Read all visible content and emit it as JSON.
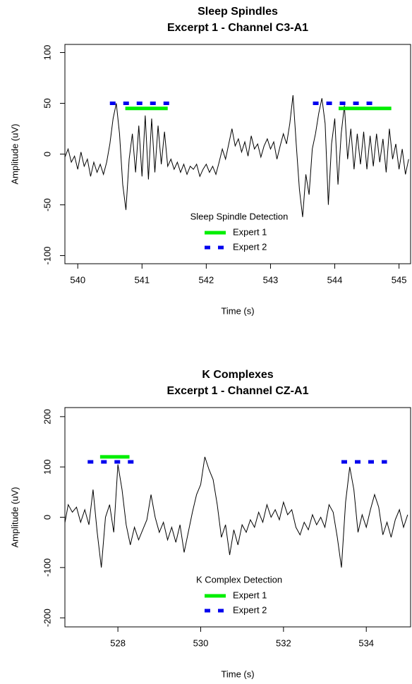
{
  "chart_data": [
    {
      "type": "line",
      "title": "Sleep Spindles",
      "subtitle": "Excerpt 1 - Channel C3-A1",
      "xlabel": "Time (s)",
      "ylabel": "Amplitude (uV)",
      "xlim": [
        539.8,
        545.18
      ],
      "ylim": [
        -108,
        108
      ],
      "xticks": [
        540,
        541,
        542,
        543,
        544,
        545
      ],
      "yticks": [
        -100,
        -50,
        0,
        50,
        100
      ],
      "grid": false,
      "legend": "bottom",
      "legend_title": "Sleep Spindle Detection",
      "color": "#000000",
      "x": [
        539.8,
        539.85,
        539.9,
        539.95,
        540.0,
        540.05,
        540.1,
        540.15,
        540.2,
        540.25,
        540.3,
        540.35,
        540.4,
        540.45,
        540.5,
        540.55,
        540.6,
        540.65,
        540.7,
        540.75,
        540.8,
        540.85,
        540.9,
        540.95,
        541.0,
        541.05,
        541.1,
        541.15,
        541.2,
        541.25,
        541.3,
        541.35,
        541.4,
        541.45,
        541.5,
        541.55,
        541.6,
        541.65,
        541.7,
        541.75,
        541.8,
        541.85,
        541.9,
        541.95,
        542.0,
        542.05,
        542.1,
        542.15,
        542.2,
        542.25,
        542.3,
        542.35,
        542.4,
        542.45,
        542.5,
        542.55,
        542.6,
        542.65,
        542.7,
        542.75,
        542.8,
        542.85,
        542.9,
        542.95,
        543.0,
        543.05,
        543.1,
        543.15,
        543.2,
        543.25,
        543.3,
        543.35,
        543.4,
        543.45,
        543.5,
        543.55,
        543.6,
        543.65,
        543.7,
        543.75,
        543.8,
        543.85,
        543.9,
        543.95,
        544.0,
        544.05,
        544.1,
        544.15,
        544.2,
        544.25,
        544.3,
        544.35,
        544.4,
        544.45,
        544.5,
        544.55,
        544.6,
        544.65,
        544.7,
        544.75,
        544.8,
        544.85,
        544.9,
        544.95,
        545.0,
        545.05,
        545.1,
        545.15
      ],
      "values": [
        -3,
        5,
        -8,
        -2,
        -15,
        2,
        -12,
        -5,
        -22,
        -8,
        -18,
        -10,
        -20,
        -8,
        10,
        35,
        50,
        20,
        -30,
        -55,
        -5,
        20,
        -18,
        28,
        -22,
        38,
        -25,
        35,
        -18,
        28,
        -10,
        22,
        -12,
        -5,
        -15,
        -8,
        -18,
        -10,
        -20,
        -12,
        -15,
        -10,
        -22,
        -15,
        -10,
        -18,
        -12,
        -20,
        -8,
        5,
        -5,
        10,
        25,
        8,
        15,
        2,
        12,
        -2,
        18,
        5,
        10,
        -3,
        8,
        15,
        5,
        12,
        -5,
        8,
        20,
        10,
        30,
        58,
        10,
        -35,
        -62,
        -20,
        -40,
        5,
        20,
        40,
        55,
        30,
        -50,
        10,
        35,
        -30,
        20,
        48,
        -5,
        25,
        -15,
        20,
        -10,
        22,
        -15,
        18,
        -12,
        20,
        -8,
        15,
        -18,
        25,
        -5,
        10,
        -15,
        5,
        -20,
        -5
      ],
      "series": [
        {
          "name": "Expert 1",
          "color": "#00ee00",
          "dashed": false,
          "level": 45,
          "intervals": [
            [
              540.74,
              541.4
            ],
            [
              544.06,
              544.88
            ]
          ]
        },
        {
          "name": "Expert 2",
          "color": "#0000ee",
          "dashed": true,
          "level": 50,
          "intervals": [
            [
              540.5,
              541.49
            ],
            [
              543.66,
              544.66
            ]
          ]
        }
      ]
    },
    {
      "type": "line",
      "title": "K Complexes",
      "subtitle": "Excerpt 1 - Channel CZ-A1",
      "xlabel": "Time (s)",
      "ylabel": "Amplitude (uV)",
      "xlim": [
        526.72,
        535.07
      ],
      "ylim": [
        -218,
        218
      ],
      "xticks": [
        528,
        530,
        532,
        534
      ],
      "yticks": [
        -200,
        -100,
        0,
        100,
        200
      ],
      "grid": false,
      "legend": "bottom",
      "legend_title": "K Complex Detection",
      "color": "#000000",
      "x": [
        526.7,
        526.8,
        526.9,
        527.0,
        527.1,
        527.2,
        527.3,
        527.4,
        527.5,
        527.6,
        527.7,
        527.8,
        527.9,
        528.0,
        528.1,
        528.2,
        528.3,
        528.4,
        528.5,
        528.6,
        528.7,
        528.8,
        528.9,
        529.0,
        529.1,
        529.2,
        529.3,
        529.4,
        529.5,
        529.6,
        529.7,
        529.8,
        529.9,
        530.0,
        530.1,
        530.2,
        530.3,
        530.4,
        530.5,
        530.6,
        530.7,
        530.8,
        530.9,
        531.0,
        531.1,
        531.2,
        531.3,
        531.4,
        531.5,
        531.6,
        531.7,
        531.8,
        531.9,
        532.0,
        532.1,
        532.2,
        532.3,
        532.4,
        532.5,
        532.6,
        532.7,
        532.8,
        532.9,
        533.0,
        533.1,
        533.2,
        533.3,
        533.4,
        533.5,
        533.6,
        533.7,
        533.8,
        533.9,
        534.0,
        534.1,
        534.2,
        534.3,
        534.4,
        534.5,
        534.6,
        534.7,
        534.8,
        534.9,
        535.0
      ],
      "values": [
        -20,
        25,
        10,
        20,
        -10,
        15,
        -15,
        55,
        -30,
        -100,
        0,
        25,
        -30,
        105,
        55,
        -15,
        -55,
        -20,
        -45,
        -25,
        -5,
        45,
        0,
        -30,
        -10,
        -45,
        -20,
        -50,
        -15,
        -70,
        -30,
        10,
        45,
        65,
        120,
        95,
        75,
        25,
        -40,
        -15,
        -75,
        -25,
        -55,
        -15,
        -30,
        -5,
        -20,
        10,
        -10,
        25,
        0,
        15,
        -5,
        30,
        5,
        15,
        -20,
        -35,
        -10,
        -25,
        5,
        -15,
        0,
        -20,
        25,
        10,
        -40,
        -100,
        30,
        100,
        55,
        -30,
        5,
        -20,
        15,
        45,
        20,
        -35,
        -10,
        -40,
        -5,
        15,
        -20,
        5
      ],
      "series": [
        {
          "name": "Expert 1",
          "color": "#00ee00",
          "dashed": false,
          "level": 120,
          "intervals": [
            [
              527.57,
              528.28
            ]
          ]
        },
        {
          "name": "Expert 2",
          "color": "#0000ee",
          "dashed": true,
          "level": 110,
          "intervals": [
            [
              527.27,
              528.43
            ],
            [
              533.4,
              534.5
            ]
          ]
        }
      ]
    }
  ]
}
